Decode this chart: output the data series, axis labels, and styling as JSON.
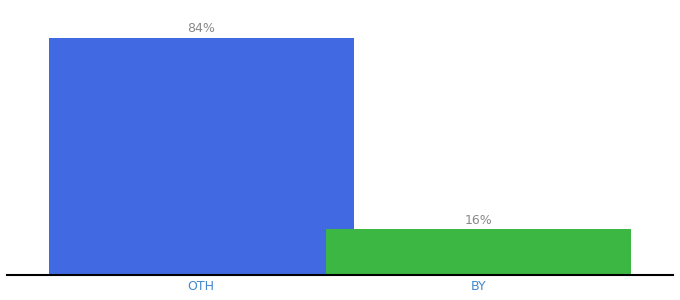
{
  "categories": [
    "OTH",
    "BY"
  ],
  "values": [
    84,
    16
  ],
  "bar_colors": [
    "#4169E1",
    "#3CB743"
  ],
  "labels": [
    "84%",
    "16%"
  ],
  "background_color": "#ffffff",
  "ylim": [
    0,
    95
  ],
  "label_fontsize": 9,
  "tick_fontsize": 9,
  "bar_width": 0.55
}
